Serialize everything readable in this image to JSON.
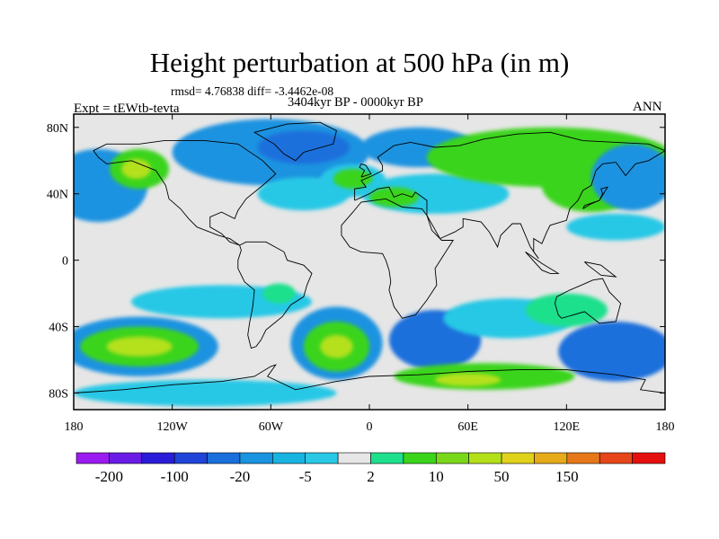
{
  "title": "Height perturbation at 500 hPa (in m)",
  "stats_line": "rmsd= 4.76838 diff= -3.4462e-08",
  "period": "3404kyr BP - 0000kyr BP",
  "experiment": "Expt = tEWtb-tevta",
  "season": "ANN",
  "lat_ticks": [
    {
      "value": 80,
      "label": "80N"
    },
    {
      "value": 40,
      "label": "40N"
    },
    {
      "value": 0,
      "label": "0"
    },
    {
      "value": -40,
      "label": "40S"
    },
    {
      "value": -80,
      "label": "80S"
    }
  ],
  "lon_ticks": [
    {
      "value": -180,
      "label": "180"
    },
    {
      "value": -120,
      "label": "120W"
    },
    {
      "value": -60,
      "label": "60W"
    },
    {
      "value": 0,
      "label": "0"
    },
    {
      "value": 60,
      "label": "60E"
    },
    {
      "value": 120,
      "label": "120E"
    },
    {
      "value": 180,
      "label": "180"
    }
  ],
  "colorbar": {
    "colors": [
      "#9a1cf0",
      "#6a1ce6",
      "#2a1cd8",
      "#1f44d8",
      "#1a6fdc",
      "#1a93e0",
      "#19b3e0",
      "#28c8e6",
      "#e6e6e6",
      "#1ee08c",
      "#3ad41a",
      "#7ad81a",
      "#b4e01a",
      "#e0d21a",
      "#e6aa1a",
      "#e6781a",
      "#e6461a",
      "#e60f0f"
    ],
    "labels": [
      {
        "after_index": 0,
        "text": "-200"
      },
      {
        "after_index": 2,
        "text": "-100"
      },
      {
        "after_index": 4,
        "text": "-20"
      },
      {
        "after_index": 6,
        "text": "-5"
      },
      {
        "after_index": 8,
        "text": "2"
      },
      {
        "after_index": 10,
        "text": "10"
      },
      {
        "after_index": 12,
        "text": "50"
      },
      {
        "after_index": 14,
        "text": "150"
      }
    ]
  },
  "field": {
    "background": "#e6e6e6",
    "blobs": [
      {
        "lon": -165,
        "lat": 45,
        "rlon": 30,
        "rlat": 22,
        "color": "#1a93e0"
      },
      {
        "lon": -140,
        "lat": 55,
        "rlon": 18,
        "rlat": 12,
        "color": "#3ad41a"
      },
      {
        "lon": -142,
        "lat": 55,
        "rlon": 9,
        "rlat": 6,
        "color": "#b4e01a"
      },
      {
        "lon": -60,
        "lat": 65,
        "rlon": 60,
        "rlat": 20,
        "color": "#1a93e0"
      },
      {
        "lon": -40,
        "lat": 68,
        "rlon": 28,
        "rlat": 10,
        "color": "#1a6fdc"
      },
      {
        "lon": -40,
        "lat": 40,
        "rlon": 28,
        "rlat": 10,
        "color": "#28c8e6"
      },
      {
        "lon": -10,
        "lat": 48,
        "rlon": 20,
        "rlat": 10,
        "color": "#28c8e6"
      },
      {
        "lon": -10,
        "lat": 49,
        "rlon": 12,
        "rlat": 6,
        "color": "#3ad41a"
      },
      {
        "lon": 30,
        "lat": 68,
        "rlon": 35,
        "rlat": 12,
        "color": "#1a93e0"
      },
      {
        "lon": 40,
        "lat": 40,
        "rlon": 45,
        "rlat": 12,
        "color": "#28c8e6"
      },
      {
        "lon": 15,
        "lat": 38,
        "rlon": 15,
        "rlat": 6,
        "color": "#3ad41a"
      },
      {
        "lon": 110,
        "lat": 62,
        "rlon": 75,
        "rlat": 18,
        "color": "#3ad41a"
      },
      {
        "lon": 135,
        "lat": 45,
        "rlon": 30,
        "rlat": 16,
        "color": "#3ad41a"
      },
      {
        "lon": 160,
        "lat": 50,
        "rlon": 25,
        "rlat": 20,
        "color": "#1a93e0"
      },
      {
        "lon": 150,
        "lat": 20,
        "rlon": 30,
        "rlat": 8,
        "color": "#28c8e6"
      },
      {
        "lon": -90,
        "lat": -25,
        "rlon": 55,
        "rlat": 10,
        "color": "#28c8e6"
      },
      {
        "lon": -55,
        "lat": -20,
        "rlon": 10,
        "rlat": 6,
        "color": "#1ee08c"
      },
      {
        "lon": -140,
        "lat": -52,
        "rlon": 48,
        "rlat": 18,
        "color": "#1a93e0"
      },
      {
        "lon": -140,
        "lat": -52,
        "rlon": 36,
        "rlat": 12,
        "color": "#3ad41a"
      },
      {
        "lon": -140,
        "lat": -52,
        "rlon": 20,
        "rlat": 6,
        "color": "#b4e01a"
      },
      {
        "lon": -20,
        "lat": -50,
        "rlon": 28,
        "rlat": 22,
        "color": "#1a93e0"
      },
      {
        "lon": -20,
        "lat": -52,
        "rlon": 20,
        "rlat": 15,
        "color": "#3ad41a"
      },
      {
        "lon": -20,
        "lat": -52,
        "rlon": 10,
        "rlat": 7,
        "color": "#b4e01a"
      },
      {
        "lon": 40,
        "lat": -48,
        "rlon": 28,
        "rlat": 18,
        "color": "#1a6fdc"
      },
      {
        "lon": 85,
        "lat": -35,
        "rlon": 40,
        "rlat": 12,
        "color": "#28c8e6"
      },
      {
        "lon": 120,
        "lat": -30,
        "rlon": 25,
        "rlat": 10,
        "color": "#1ee08c"
      },
      {
        "lon": 150,
        "lat": -55,
        "rlon": 35,
        "rlat": 18,
        "color": "#1a6fdc"
      },
      {
        "lon": 70,
        "lat": -70,
        "rlon": 55,
        "rlat": 8,
        "color": "#3ad41a"
      },
      {
        "lon": 60,
        "lat": -72,
        "rlon": 20,
        "rlat": 4,
        "color": "#b4e01a"
      },
      {
        "lon": -100,
        "lat": -80,
        "rlon": 80,
        "rlat": 8,
        "color": "#28c8e6"
      }
    ]
  },
  "coastlines": [
    [
      [
        -168,
        66
      ],
      [
        -160,
        70
      ],
      [
        -140,
        70
      ],
      [
        -125,
        72
      ],
      [
        -100,
        72
      ],
      [
        -80,
        70
      ],
      [
        -65,
        60
      ],
      [
        -57,
        52
      ],
      [
        -65,
        45
      ],
      [
        -75,
        37
      ],
      [
        -80,
        30
      ],
      [
        -82,
        25
      ],
      [
        -90,
        29
      ],
      [
        -97,
        26
      ],
      [
        -97,
        20
      ],
      [
        -90,
        16
      ],
      [
        -85,
        11
      ],
      [
        -79,
        9
      ],
      [
        -85,
        13
      ],
      [
        -92,
        15
      ],
      [
        -105,
        20
      ],
      [
        -110,
        25
      ],
      [
        -115,
        31
      ],
      [
        -122,
        37
      ],
      [
        -124,
        45
      ],
      [
        -130,
        54
      ],
      [
        -145,
        60
      ],
      [
        -160,
        58
      ],
      [
        -165,
        62
      ],
      [
        -168,
        66
      ]
    ],
    [
      [
        -79,
        9
      ],
      [
        -75,
        11
      ],
      [
        -63,
        11
      ],
      [
        -52,
        5
      ],
      [
        -50,
        0
      ],
      [
        -40,
        -3
      ],
      [
        -35,
        -8
      ],
      [
        -38,
        -15
      ],
      [
        -40,
        -22
      ],
      [
        -48,
        -27
      ],
      [
        -53,
        -34
      ],
      [
        -58,
        -38
      ],
      [
        -63,
        -42
      ],
      [
        -66,
        -48
      ],
      [
        -69,
        -52
      ],
      [
        -72,
        -53
      ],
      [
        -74,
        -45
      ],
      [
        -73,
        -38
      ],
      [
        -71,
        -28
      ],
      [
        -70,
        -18
      ],
      [
        -76,
        -13
      ],
      [
        -80,
        -5
      ],
      [
        -80,
        0
      ],
      [
        -78,
        6
      ],
      [
        -79,
        9
      ]
    ],
    [
      [
        -50,
        82
      ],
      [
        -30,
        83
      ],
      [
        -20,
        78
      ],
      [
        -22,
        70
      ],
      [
        -40,
        65
      ],
      [
        -45,
        60
      ],
      [
        -52,
        64
      ],
      [
        -58,
        70
      ],
      [
        -70,
        77
      ],
      [
        -50,
        82
      ]
    ],
    [
      [
        -9,
        36
      ],
      [
        -9,
        43
      ],
      [
        -2,
        44
      ],
      [
        -5,
        48
      ],
      [
        2,
        51
      ],
      [
        8,
        54
      ],
      [
        8,
        57
      ],
      [
        5,
        62
      ],
      [
        15,
        69
      ],
      [
        25,
        71
      ],
      [
        40,
        68
      ],
      [
        55,
        69
      ],
      [
        70,
        73
      ],
      [
        90,
        76
      ],
      [
        110,
        77
      ],
      [
        130,
        72
      ],
      [
        150,
        71
      ],
      [
        170,
        70
      ],
      [
        180,
        66
      ],
      [
        170,
        60
      ],
      [
        162,
        58
      ],
      [
        156,
        51
      ],
      [
        150,
        59
      ],
      [
        142,
        58
      ],
      [
        138,
        54
      ],
      [
        135,
        45
      ],
      [
        130,
        42
      ],
      [
        127,
        36
      ],
      [
        122,
        31
      ],
      [
        120,
        24
      ],
      [
        110,
        21
      ],
      [
        108,
        17
      ],
      [
        105,
        10
      ],
      [
        100,
        13
      ],
      [
        100,
        5
      ],
      [
        103,
        1
      ],
      [
        98,
        8
      ],
      [
        92,
        22
      ],
      [
        87,
        22
      ],
      [
        80,
        15
      ],
      [
        78,
        8
      ],
      [
        73,
        17
      ],
      [
        68,
        23
      ],
      [
        57,
        25
      ],
      [
        57,
        20
      ],
      [
        52,
        17
      ],
      [
        43,
        13
      ],
      [
        35,
        27
      ],
      [
        35,
        36
      ],
      [
        28,
        41
      ],
      [
        26,
        38
      ],
      [
        20,
        40
      ],
      [
        15,
        38
      ],
      [
        12,
        44
      ],
      [
        5,
        43
      ],
      [
        0,
        40
      ],
      [
        -9,
        36
      ]
    ],
    [
      [
        -17,
        21
      ],
      [
        -17,
        15
      ],
      [
        -12,
        8
      ],
      [
        -5,
        5
      ],
      [
        8,
        4
      ],
      [
        10,
        0
      ],
      [
        12,
        -6
      ],
      [
        13,
        -13
      ],
      [
        12,
        -18
      ],
      [
        15,
        -28
      ],
      [
        20,
        -35
      ],
      [
        28,
        -33
      ],
      [
        35,
        -24
      ],
      [
        41,
        -15
      ],
      [
        40,
        -5
      ],
      [
        51,
        12
      ],
      [
        44,
        12
      ],
      [
        38,
        18
      ],
      [
        35,
        27
      ],
      [
        32,
        31
      ],
      [
        20,
        32
      ],
      [
        10,
        37
      ],
      [
        -5,
        35
      ],
      [
        -10,
        29
      ],
      [
        -17,
        21
      ]
    ],
    [
      [
        114,
        -22
      ],
      [
        122,
        -18
      ],
      [
        129,
        -15
      ],
      [
        136,
        -12
      ],
      [
        142,
        -11
      ],
      [
        146,
        -19
      ],
      [
        153,
        -26
      ],
      [
        150,
        -37
      ],
      [
        140,
        -38
      ],
      [
        131,
        -31
      ],
      [
        117,
        -35
      ],
      [
        115,
        -33
      ],
      [
        113,
        -26
      ],
      [
        114,
        -22
      ]
    ],
    [
      [
        -5,
        50
      ],
      [
        1,
        52
      ],
      [
        -2,
        57
      ],
      [
        -5,
        58
      ],
      [
        -6,
        56
      ],
      [
        -3,
        54
      ],
      [
        -5,
        50
      ]
    ],
    [
      [
        130,
        31
      ],
      [
        135,
        34
      ],
      [
        140,
        36
      ],
      [
        142,
        40
      ],
      [
        141,
        43
      ],
      [
        145,
        44
      ],
      [
        140,
        36
      ],
      [
        131,
        33
      ],
      [
        130,
        31
      ]
    ],
    [
      [
        95,
        5
      ],
      [
        105,
        -6
      ],
      [
        110,
        -8
      ],
      [
        115,
        -8
      ],
      [
        105,
        -2
      ],
      [
        98,
        3
      ],
      [
        95,
        5
      ]
    ],
    [
      [
        131,
        -1
      ],
      [
        141,
        -3
      ],
      [
        150,
        -10
      ],
      [
        141,
        -9
      ],
      [
        133,
        -3
      ],
      [
        131,
        -1
      ]
    ],
    [
      [
        -180,
        -80
      ],
      [
        -150,
        -78
      ],
      [
        -120,
        -75
      ],
      [
        -90,
        -73
      ],
      [
        -70,
        -70
      ],
      [
        -60,
        -64
      ],
      [
        -57,
        -63
      ],
      [
        -62,
        -70
      ],
      [
        -45,
        -78
      ],
      [
        -20,
        -73
      ],
      [
        0,
        -70
      ],
      [
        30,
        -69
      ],
      [
        60,
        -67
      ],
      [
        90,
        -66
      ],
      [
        120,
        -66
      ],
      [
        150,
        -69
      ],
      [
        168,
        -72
      ],
      [
        165,
        -78
      ],
      [
        180,
        -80
      ]
    ]
  ]
}
